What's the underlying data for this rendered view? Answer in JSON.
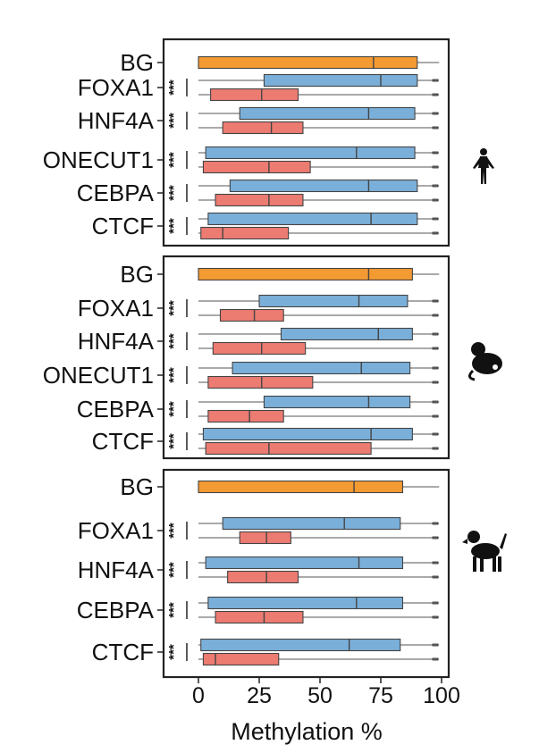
{
  "chart_data": [
    {
      "type": "boxplot",
      "title": "",
      "organism_icon": "human-silhouette-icon",
      "significance_label": "***",
      "xlim": [
        0,
        100
      ],
      "box_colors": {
        "BG": "#f39a33",
        "blue": "#7aafd9",
        "red": "#ec7b72"
      },
      "categories": [
        "BG",
        "FOXA1",
        "HNF4A",
        "ONECUT1",
        "CEBPA",
        "CTCF"
      ],
      "boxes": [
        {
          "category": "BG",
          "color": "orange",
          "min": 0,
          "q1": 0,
          "median": 72,
          "q3": 90,
          "max": 99,
          "sig": false
        },
        {
          "category": "FOXA1",
          "color": "blue",
          "min": 0,
          "q1": 27,
          "median": 75,
          "q3": 90,
          "max": 97,
          "sig": true
        },
        {
          "category": "FOXA1",
          "color": "red",
          "min": 0,
          "q1": 5,
          "median": 26,
          "q3": 41,
          "max": 97,
          "sig": true
        },
        {
          "category": "HNF4A",
          "color": "blue",
          "min": 0,
          "q1": 17,
          "median": 70,
          "q3": 89,
          "max": 97,
          "sig": true
        },
        {
          "category": "HNF4A",
          "color": "red",
          "min": 0,
          "q1": 10,
          "median": 30,
          "q3": 43,
          "max": 97,
          "sig": true
        },
        {
          "category": "ONECUT1",
          "color": "blue",
          "min": 0,
          "q1": 3,
          "median": 65,
          "q3": 89,
          "max": 97,
          "sig": true
        },
        {
          "category": "ONECUT1",
          "color": "red",
          "min": 0,
          "q1": 2,
          "median": 29,
          "q3": 46,
          "max": 97,
          "sig": true
        },
        {
          "category": "CEBPA",
          "color": "blue",
          "min": 0,
          "q1": 13,
          "median": 70,
          "q3": 90,
          "max": 97,
          "sig": true
        },
        {
          "category": "CEBPA",
          "color": "red",
          "min": 0,
          "q1": 7,
          "median": 29,
          "q3": 43,
          "max": 97,
          "sig": true
        },
        {
          "category": "CTCF",
          "color": "blue",
          "min": 0,
          "q1": 4,
          "median": 71,
          "q3": 90,
          "max": 97,
          "sig": true
        },
        {
          "category": "CTCF",
          "color": "red",
          "min": 0,
          "q1": 1,
          "median": 10,
          "q3": 37,
          "max": 97,
          "sig": true
        }
      ]
    },
    {
      "type": "boxplot",
      "title": "",
      "organism_icon": "mouse-silhouette-icon",
      "significance_label": "***",
      "xlim": [
        0,
        100
      ],
      "box_colors": {
        "BG": "#f39a33",
        "blue": "#7aafd9",
        "red": "#ec7b72"
      },
      "categories": [
        "BG",
        "FOXA1",
        "HNF4A",
        "ONECUT1",
        "CEBPA",
        "CTCF"
      ],
      "boxes": [
        {
          "category": "BG",
          "color": "orange",
          "min": 0,
          "q1": 0,
          "median": 70,
          "q3": 88,
          "max": 99,
          "sig": false
        },
        {
          "category": "FOXA1",
          "color": "blue",
          "min": 0,
          "q1": 25,
          "median": 66,
          "q3": 86,
          "max": 97,
          "sig": true
        },
        {
          "category": "FOXA1",
          "color": "red",
          "min": 0,
          "q1": 9,
          "median": 23,
          "q3": 35,
          "max": 97,
          "sig": true
        },
        {
          "category": "HNF4A",
          "color": "blue",
          "min": 0,
          "q1": 34,
          "median": 74,
          "q3": 88,
          "max": 97,
          "sig": true
        },
        {
          "category": "HNF4A",
          "color": "red",
          "min": 0,
          "q1": 6,
          "median": 26,
          "q3": 44,
          "max": 97,
          "sig": true
        },
        {
          "category": "ONECUT1",
          "color": "blue",
          "min": 0,
          "q1": 14,
          "median": 67,
          "q3": 87,
          "max": 97,
          "sig": true
        },
        {
          "category": "ONECUT1",
          "color": "red",
          "min": 0,
          "q1": 4,
          "median": 26,
          "q3": 47,
          "max": 97,
          "sig": true
        },
        {
          "category": "CEBPA",
          "color": "blue",
          "min": 0,
          "q1": 27,
          "median": 70,
          "q3": 87,
          "max": 97,
          "sig": true
        },
        {
          "category": "CEBPA",
          "color": "red",
          "min": 0,
          "q1": 4,
          "median": 21,
          "q3": 35,
          "max": 97,
          "sig": true
        },
        {
          "category": "CTCF",
          "color": "blue",
          "min": 0,
          "q1": 2,
          "median": 71,
          "q3": 88,
          "max": 97,
          "sig": true
        },
        {
          "category": "CTCF",
          "color": "red",
          "min": 0,
          "q1": 3,
          "median": 29,
          "q3": 71,
          "max": 97,
          "sig": true
        }
      ]
    },
    {
      "type": "boxplot",
      "title": "",
      "organism_icon": "dog-silhouette-icon",
      "significance_label": "***",
      "xlim": [
        0,
        100
      ],
      "box_colors": {
        "BG": "#f39a33",
        "blue": "#7aafd9",
        "red": "#ec7b72"
      },
      "categories": [
        "BG",
        "FOXA1",
        "HNF4A",
        "CEBPA",
        "CTCF"
      ],
      "boxes": [
        {
          "category": "BG",
          "color": "orange",
          "min": 0,
          "q1": 0,
          "median": 64,
          "q3": 84,
          "max": 99,
          "sig": false
        },
        {
          "category": "FOXA1",
          "color": "blue",
          "min": 0,
          "q1": 10,
          "median": 60,
          "q3": 83,
          "max": 97,
          "sig": true
        },
        {
          "category": "FOXA1",
          "color": "red",
          "min": 0,
          "q1": 17,
          "median": 28,
          "q3": 38,
          "max": 97,
          "sig": true
        },
        {
          "category": "HNF4A",
          "color": "blue",
          "min": 0,
          "q1": 3,
          "median": 66,
          "q3": 84,
          "max": 97,
          "sig": true
        },
        {
          "category": "HNF4A",
          "color": "red",
          "min": 0,
          "q1": 12,
          "median": 28,
          "q3": 41,
          "max": 97,
          "sig": true
        },
        {
          "category": "CEBPA",
          "color": "blue",
          "min": 0,
          "q1": 4,
          "median": 65,
          "q3": 84,
          "max": 97,
          "sig": true
        },
        {
          "category": "CEBPA",
          "color": "red",
          "min": 0,
          "q1": 7,
          "median": 27,
          "q3": 43,
          "max": 97,
          "sig": true
        },
        {
          "category": "CTCF",
          "color": "blue",
          "min": 0,
          "q1": 1,
          "median": 62,
          "q3": 83,
          "max": 97,
          "sig": true
        },
        {
          "category": "CTCF",
          "color": "red",
          "min": 0,
          "q1": 2,
          "median": 7,
          "q3": 33,
          "max": 97,
          "sig": true
        }
      ]
    }
  ],
  "x_axis": {
    "label": "Methylation %",
    "ticks": [
      0,
      25,
      50,
      75,
      100
    ]
  }
}
